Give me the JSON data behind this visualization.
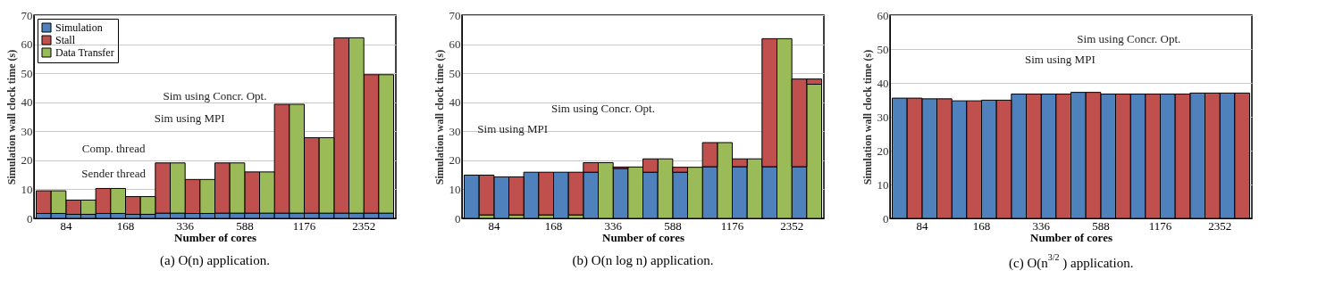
{
  "chart_data": [
    {
      "type": "bar",
      "stacked": true,
      "title": "(a) O(n) application.",
      "xlabel": "Number of cores",
      "ylabel": "Simulation wall clock time (s)",
      "categories": [
        null,
        "84",
        null,
        null,
        null,
        "168",
        null,
        null,
        null,
        "336",
        null,
        null,
        null,
        "588",
        null,
        null,
        null,
        "1176",
        null,
        null,
        null,
        "2352",
        null,
        null
      ],
      "ylim": [
        0,
        70
      ],
      "yticks": [
        0,
        10,
        20,
        30,
        40,
        50,
        60,
        70
      ],
      "grid": "y",
      "legend": "top left",
      "annotations": [
        "Sim using Concr. Opt.",
        "Sim using MPI",
        "Comp. thread",
        "Sender thread"
      ],
      "series": [
        {
          "name": "Simulation",
          "color": "#4f81bd",
          "values": [
            1.7,
            1.7,
            1.4,
            1.4,
            1.7,
            1.7,
            1.4,
            1.4,
            1.8,
            1.8,
            1.7,
            1.7,
            1.8,
            1.8,
            1.8,
            1.8,
            1.8,
            1.8,
            1.8,
            1.8,
            1.8,
            1.8,
            1.8,
            1.8
          ]
        },
        {
          "name": "Stall",
          "color": "#c0504d",
          "values": [
            7.8,
            null,
            4.9,
            null,
            8.6,
            null,
            6.1,
            null,
            17.3,
            null,
            11.7,
            null,
            17.3,
            null,
            14.2,
            null,
            37.5,
            null,
            26.0,
            null,
            60.4,
            null,
            47.7,
            null
          ]
        },
        {
          "name": "Data Transfer",
          "color": "#9bbb59",
          "values": [
            null,
            7.8,
            null,
            4.9,
            null,
            8.6,
            null,
            6.1,
            null,
            17.3,
            null,
            11.7,
            null,
            17.3,
            null,
            14.2,
            null,
            37.5,
            null,
            26.0,
            null,
            60.4,
            null,
            47.7
          ]
        }
      ]
    },
    {
      "type": "bar",
      "stacked": true,
      "title": "(b) O(n log n) application.",
      "xlabel": "Number of cores",
      "ylabel": "Simulation wall clock time (s)",
      "categories": [
        null,
        "84",
        null,
        null,
        null,
        "168",
        null,
        null,
        null,
        "336",
        null,
        null,
        null,
        "588",
        null,
        null,
        null,
        "1176",
        null,
        null,
        null,
        "2352",
        null,
        null
      ],
      "ylim": [
        0,
        70
      ],
      "yticks": [
        0,
        10,
        20,
        30,
        40,
        50,
        60,
        70
      ],
      "grid": "y",
      "legend": "top left",
      "annotations": [
        "Sim using MPI",
        "Sim using Concr. Opt."
      ],
      "series": [
        {
          "name": "Simulation",
          "color": "#4f81bd",
          "values": [
            14.9,
            null,
            14.3,
            null,
            15.9,
            null,
            15.9,
            null,
            15.9,
            null,
            17.2,
            null,
            15.9,
            null,
            15.9,
            null,
            17.8,
            null,
            17.8,
            null,
            17.8,
            null,
            17.8,
            null
          ]
        },
        {
          "name": "Data Transfer",
          "color": "#9bbb59",
          "values": [
            null,
            1.2,
            null,
            1.2,
            null,
            1.2,
            null,
            1.2,
            null,
            19.2,
            null,
            17.7,
            null,
            20.5,
            null,
            17.6,
            null,
            26.1,
            null,
            20.5,
            null,
            61.9,
            null,
            46.2
          ]
        },
        {
          "name": "Stall",
          "color": "#c0504d",
          "values": [
            null,
            13.7,
            null,
            13.1,
            null,
            14.7,
            null,
            14.7,
            3.3,
            null,
            0.5,
            null,
            4.6,
            null,
            1.7,
            null,
            8.3,
            null,
            2.7,
            null,
            44.1,
            null,
            30.2,
            1.8
          ]
        }
      ]
    },
    {
      "type": "bar",
      "title": "(c) O(n$^{3/2}$) application.",
      "xlabel": "Number of cores",
      "ylabel": "Simulation wall clock time (s)",
      "categories": [
        null,
        "84",
        null,
        null,
        null,
        "168",
        null,
        null,
        null,
        "336",
        null,
        null,
        null,
        "588",
        null,
        null,
        null,
        "1176",
        null,
        null,
        null,
        "2352",
        null,
        null
      ],
      "ylim": [
        0,
        60
      ],
      "yticks": [
        0,
        10,
        20,
        30,
        40,
        50,
        60
      ],
      "grid": "y",
      "legend": "top left",
      "annotations": [
        "Sim using Concr. Opt.",
        "Sim using MPI"
      ],
      "series": [
        {
          "name": "Simulation",
          "color": "#4f81bd",
          "values": [
            35.5,
            null,
            35.3,
            null,
            34.7,
            null,
            34.9,
            null,
            36.7,
            null,
            36.7,
            null,
            37.2,
            null,
            36.7,
            null,
            36.7,
            null,
            36.7,
            null,
            37.0,
            null,
            37.0,
            null
          ]
        },
        {
          "name": "Stall",
          "color": "#c0504d",
          "values": [
            null,
            35.5,
            null,
            35.3,
            null,
            34.7,
            null,
            34.9,
            null,
            36.7,
            null,
            36.7,
            null,
            37.2,
            null,
            36.7,
            null,
            36.7,
            null,
            36.7,
            null,
            37.0,
            null,
            37.0
          ]
        },
        {
          "name": "Data Transfer",
          "color": "#9bbb59",
          "values": [
            null,
            null,
            null,
            null,
            null,
            null,
            null,
            null,
            null,
            null,
            null,
            null,
            null,
            null,
            null,
            null,
            null,
            null,
            null,
            null,
            null,
            null,
            null,
            null
          ]
        }
      ]
    }
  ]
}
